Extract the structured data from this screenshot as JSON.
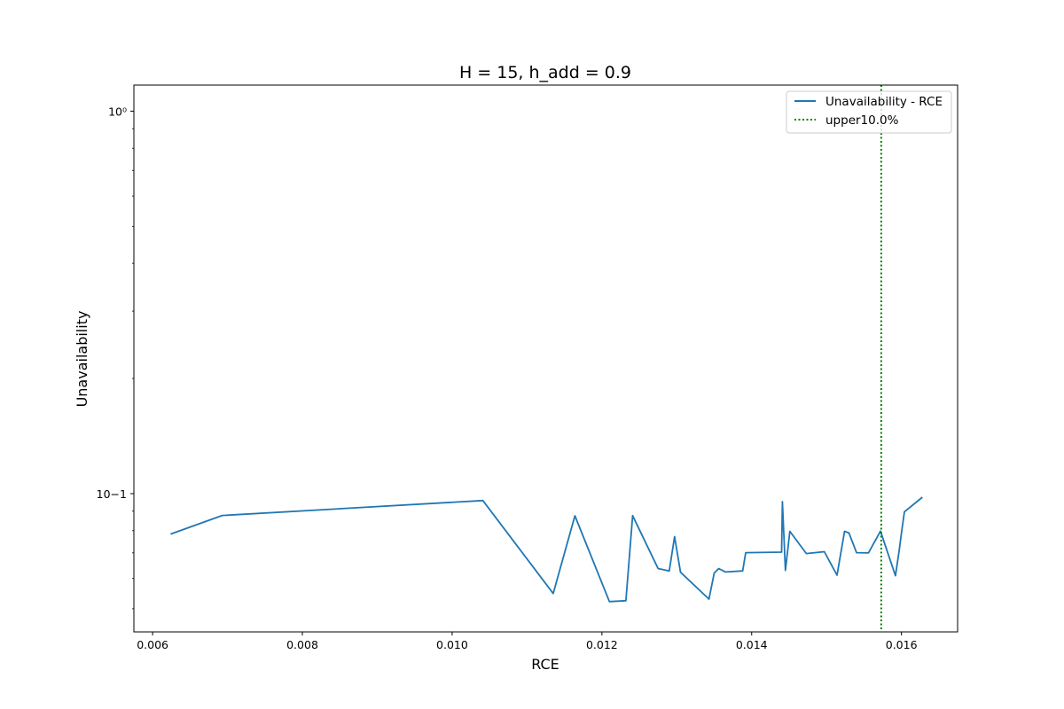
{
  "chart_data": {
    "type": "line",
    "title": "H = 15, h_add = 0.9",
    "xlabel": "RCE",
    "ylabel": "Unavailability",
    "xlim": [
      0.00575,
      0.01675
    ],
    "ylim": [
      0.0435,
      1.17
    ],
    "yscale": "log",
    "grid": false,
    "legend_position": "top-right",
    "x_ticks": [
      0.006,
      0.008,
      0.01,
      0.012,
      0.014,
      0.016
    ],
    "x_tick_labels": [
      "0.006",
      "0.008",
      "0.010",
      "0.012",
      "0.014",
      "0.016"
    ],
    "y_ticks": [
      0.1,
      1
    ],
    "y_tick_labels": [
      "10−1",
      "10⁰"
    ],
    "series": [
      {
        "name": "Unavailability - RCE",
        "color": "#1f77b4",
        "style": "solid",
        "x": [
          0.00624,
          0.00693,
          0.01041,
          0.01135,
          0.01164,
          0.0121,
          0.01232,
          0.01241,
          0.01275,
          0.0129,
          0.01297,
          0.01305,
          0.01343,
          0.0135,
          0.01356,
          0.01365,
          0.01388,
          0.01392,
          0.0144,
          0.01441,
          0.01445,
          0.01451,
          0.01473,
          0.01497,
          0.01514,
          0.01524,
          0.0153,
          0.0154,
          0.01556,
          0.01572,
          0.01592,
          0.01597,
          0.016,
          0.01604,
          0.01628
        ],
        "y": [
          0.0784,
          0.0877,
          0.0959,
          0.0548,
          0.0875,
          0.0522,
          0.0525,
          0.0876,
          0.0637,
          0.0628,
          0.0772,
          0.0623,
          0.053,
          0.062,
          0.0637,
          0.0624,
          0.0628,
          0.0701,
          0.0703,
          0.0953,
          0.063,
          0.0797,
          0.0697,
          0.0705,
          0.0612,
          0.0797,
          0.0789,
          0.0701,
          0.07,
          0.0798,
          0.061,
          0.071,
          0.079,
          0.0896,
          0.0979
        ]
      }
    ],
    "reference_lines": [
      {
        "name": "upper10.0%",
        "orientation": "vertical",
        "x": 0.01573,
        "color": "#008000",
        "style": "dotted"
      }
    ]
  }
}
